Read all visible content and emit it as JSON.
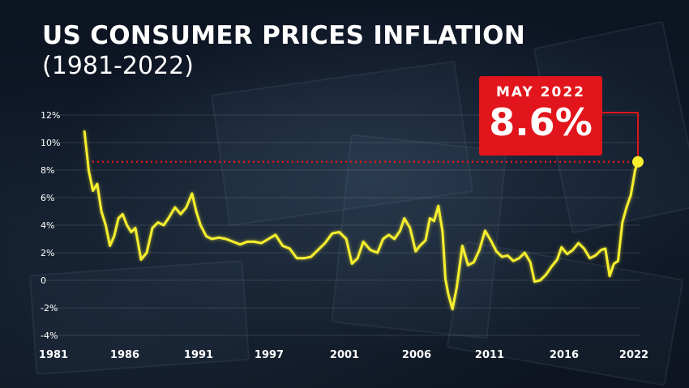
{
  "header": {
    "title": "US CONSUMER PRICES INFLATION",
    "subtitle": "(1981-2022)"
  },
  "callout": {
    "label": "MAY 2022",
    "value": "8.6%"
  },
  "colors": {
    "line": "#f6ef2e",
    "callout_bg": "#e1151b",
    "reference_line": "#e1151b",
    "text": "#ffffff"
  },
  "chart_data": {
    "type": "line",
    "title": "US CONSUMER PRICES INFLATION",
    "subtitle": "(1981-2022)",
    "xlabel": "",
    "ylabel": "",
    "xlim": [
      1981,
      2022
    ],
    "ylim": [
      -4,
      12
    ],
    "yticks": [
      {
        "value": 12,
        "label": "12%"
      },
      {
        "value": 10,
        "label": "10%"
      },
      {
        "value": 8,
        "label": "8%"
      },
      {
        "value": 6,
        "label": "6%"
      },
      {
        "value": 4,
        "label": "4%"
      },
      {
        "value": 2,
        "label": "2%"
      },
      {
        "value": 0,
        "label": "0"
      },
      {
        "value": -2,
        "label": "-2%"
      },
      {
        "value": -4,
        "label": "-4%"
      }
    ],
    "xticks": [
      {
        "value": 1981,
        "label": "1981"
      },
      {
        "value": 1986,
        "label": "1986"
      },
      {
        "value": 1991,
        "label": "1991"
      },
      {
        "value": 1997,
        "label": "1997"
      },
      {
        "value": 2001,
        "label": "2001"
      },
      {
        "value": 2006,
        "label": "2006"
      },
      {
        "value": 2011,
        "label": "2011"
      },
      {
        "value": 2016,
        "label": "2016"
      },
      {
        "value": 2022,
        "label": "2022"
      }
    ],
    "grid": true,
    "reference_line": {
      "y": 8.6
    },
    "highlight": {
      "x": 2022.4,
      "y": 8.6,
      "label": "MAY 2022",
      "value_label": "8.6%"
    },
    "series": [
      {
        "x": [
          1983.3,
          1983.6,
          1983.9,
          1984.2,
          1984.5,
          1984.8,
          1985.1,
          1985.4,
          1985.7,
          1986.0,
          1986.3,
          1986.6,
          1986.9,
          1987.3,
          1987.7,
          1988.1,
          1988.5,
          1988.9,
          1989.3,
          1989.7,
          1990.1,
          1990.5,
          1990.9,
          1991.2,
          1991.5,
          1991.9,
          1992.3,
          1992.8,
          1993.3,
          1993.8,
          1994.3,
          1994.8,
          1995.3,
          1995.8,
          1996.3,
          1996.8,
          1997.3,
          1997.8,
          1998.3,
          1998.8,
          1999.3,
          1999.8,
          2000.3,
          2000.8,
          2001.3,
          2001.8,
          2002.2,
          2002.6,
          2003.0,
          2003.5,
          2004.0,
          2004.4,
          2004.8,
          2005.2,
          2005.6,
          2005.9,
          2006.3,
          2006.7,
          2007.0,
          2007.4,
          2007.7,
          2008.0,
          2008.3,
          2008.6,
          2008.8,
          2009.0,
          2009.3,
          2009.6,
          2010.0,
          2010.4,
          2010.8,
          2011.2,
          2011.6,
          2012.0,
          2012.4,
          2012.8,
          2013.2,
          2013.6,
          2014.0,
          2014.4,
          2014.8,
          2015.1,
          2015.5,
          2015.9,
          2016.3,
          2016.7,
          2017.0,
          2017.4,
          2017.8,
          2018.2,
          2018.6,
          2019.0,
          2019.4,
          2019.8,
          2020.1,
          2020.4,
          2020.7,
          2021.0,
          2021.3,
          2021.6,
          2021.9,
          2022.2,
          2022.4
        ],
        "values": [
          10.8,
          8.0,
          6.5,
          7.0,
          5.0,
          4.0,
          2.5,
          3.2,
          4.5,
          4.8,
          4.0,
          3.5,
          3.8,
          1.5,
          2.0,
          3.8,
          4.2,
          4.0,
          4.6,
          5.3,
          4.8,
          5.3,
          6.3,
          5.0,
          4.0,
          3.2,
          3.0,
          3.1,
          3.0,
          2.8,
          2.6,
          2.8,
          2.8,
          2.7,
          3.0,
          3.3,
          2.5,
          2.3,
          1.6,
          1.6,
          1.7,
          2.2,
          2.7,
          3.4,
          3.5,
          3.0,
          1.2,
          1.6,
          2.8,
          2.2,
          2.0,
          3.0,
          3.3,
          3.0,
          3.6,
          4.5,
          3.8,
          2.1,
          2.5,
          2.9,
          4.5,
          4.3,
          5.4,
          3.5,
          0.1,
          -1.0,
          -2.1,
          -0.5,
          2.5,
          1.1,
          1.3,
          2.2,
          3.6,
          2.9,
          2.1,
          1.7,
          1.8,
          1.4,
          1.6,
          2.0,
          1.3,
          -0.1,
          0.0,
          0.4,
          1.0,
          1.5,
          2.4,
          1.9,
          2.2,
          2.7,
          2.3,
          1.6,
          1.8,
          2.2,
          2.3,
          0.3,
          1.2,
          1.4,
          4.2,
          5.3,
          6.2,
          8.0,
          8.6
        ]
      }
    ]
  }
}
